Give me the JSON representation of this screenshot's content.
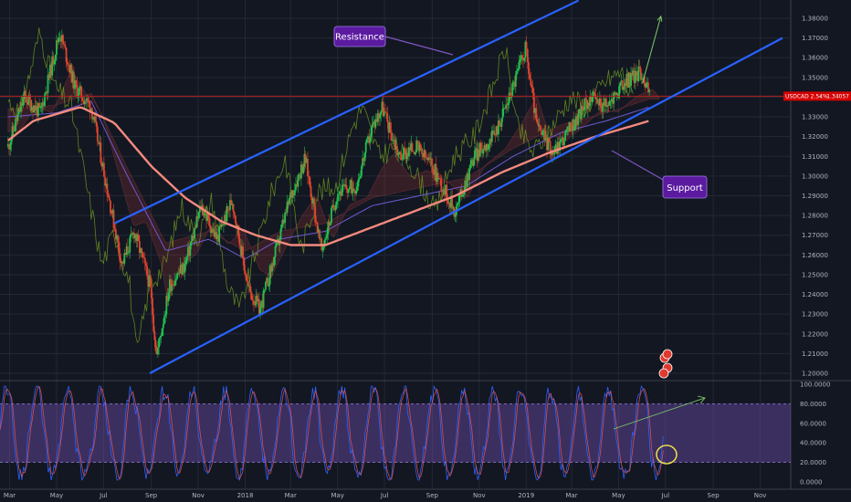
{
  "chart_data": [
    {
      "type": "line",
      "symbol_label": "USDCAD 2.54%",
      "last_price": "1.34057",
      "title": "",
      "xlabel": "",
      "ylabel": "",
      "ylim": [
        1.195,
        1.385
      ],
      "x_ticks": [
        "Mar",
        "May",
        "Jul",
        "Sep",
        "Nov",
        "2018",
        "Mar",
        "May",
        "Jul",
        "Sep",
        "Nov",
        "2019",
        "Mar",
        "May",
        "Jul",
        "Sep",
        "Nov"
      ],
      "y_ticks": [
        "1.38000",
        "1.37000",
        "1.36000",
        "1.35000",
        "1.34000",
        "1.33000",
        "1.32000",
        "1.31000",
        "1.30000",
        "1.29000",
        "1.28000",
        "1.27000",
        "1.26000",
        "1.25000",
        "1.24000",
        "1.23000",
        "1.22000",
        "1.21000",
        "1.20000"
      ],
      "price_path": [
        {
          "x": "2017-02-27",
          "y": 1.315
        },
        {
          "x": "2017-03-20",
          "y": 1.34
        },
        {
          "x": "2017-04-10",
          "y": 1.332
        },
        {
          "x": "2017-05-05",
          "y": 1.373
        },
        {
          "x": "2017-05-25",
          "y": 1.345
        },
        {
          "x": "2017-06-15",
          "y": 1.335
        },
        {
          "x": "2017-07-05",
          "y": 1.295
        },
        {
          "x": "2017-07-25",
          "y": 1.255
        },
        {
          "x": "2017-08-10",
          "y": 1.272
        },
        {
          "x": "2017-08-30",
          "y": 1.245
        },
        {
          "x": "2017-09-08",
          "y": 1.209
        },
        {
          "x": "2017-09-25",
          "y": 1.245
        },
        {
          "x": "2017-10-15",
          "y": 1.255
        },
        {
          "x": "2017-11-05",
          "y": 1.285
        },
        {
          "x": "2017-11-25",
          "y": 1.268
        },
        {
          "x": "2017-12-15",
          "y": 1.288
        },
        {
          "x": "2018-01-05",
          "y": 1.243
        },
        {
          "x": "2018-01-20",
          "y": 1.232
        },
        {
          "x": "2018-02-10",
          "y": 1.262
        },
        {
          "x": "2018-03-01",
          "y": 1.29
        },
        {
          "x": "2018-03-20",
          "y": 1.309
        },
        {
          "x": "2018-04-10",
          "y": 1.262
        },
        {
          "x": "2018-05-01",
          "y": 1.292
        },
        {
          "x": "2018-05-25",
          "y": 1.295
        },
        {
          "x": "2018-06-15",
          "y": 1.325
        },
        {
          "x": "2018-06-28",
          "y": 1.335
        },
        {
          "x": "2018-07-20",
          "y": 1.31
        },
        {
          "x": "2018-08-10",
          "y": 1.315
        },
        {
          "x": "2018-09-01",
          "y": 1.305
        },
        {
          "x": "2018-10-01",
          "y": 1.282
        },
        {
          "x": "2018-10-25",
          "y": 1.31
        },
        {
          "x": "2018-11-20",
          "y": 1.32
        },
        {
          "x": "2018-12-10",
          "y": 1.34
        },
        {
          "x": "2018-12-31",
          "y": 1.365
        },
        {
          "x": "2019-01-15",
          "y": 1.325
        },
        {
          "x": "2019-02-05",
          "y": 1.312
        },
        {
          "x": "2019-03-01",
          "y": 1.325
        },
        {
          "x": "2019-03-25",
          "y": 1.34
        },
        {
          "x": "2019-04-15",
          "y": 1.335
        },
        {
          "x": "2019-05-10",
          "y": 1.348
        },
        {
          "x": "2019-05-31",
          "y": 1.353
        },
        {
          "x": "2019-06-10",
          "y": 1.341
        }
      ],
      "ma_long": [
        {
          "x": "2017-02-27",
          "y": 1.318
        },
        {
          "x": "2017-04-01",
          "y": 1.328
        },
        {
          "x": "2017-06-01",
          "y": 1.335
        },
        {
          "x": "2017-07-15",
          "y": 1.327
        },
        {
          "x": "2017-09-01",
          "y": 1.305
        },
        {
          "x": "2017-10-15",
          "y": 1.289
        },
        {
          "x": "2017-12-01",
          "y": 1.277
        },
        {
          "x": "2018-01-15",
          "y": 1.27
        },
        {
          "x": "2018-03-01",
          "y": 1.265
        },
        {
          "x": "2018-04-15",
          "y": 1.265
        },
        {
          "x": "2018-06-01",
          "y": 1.272
        },
        {
          "x": "2018-08-01",
          "y": 1.281
        },
        {
          "x": "2018-10-01",
          "y": 1.29
        },
        {
          "x": "2018-12-01",
          "y": 1.302
        },
        {
          "x": "2019-02-01",
          "y": 1.312
        },
        {
          "x": "2019-04-01",
          "y": 1.32
        },
        {
          "x": "2019-06-10",
          "y": 1.328
        }
      ],
      "ma_short": [
        {
          "x": "2017-02-27",
          "y": 1.33
        },
        {
          "x": "2017-05-01",
          "y": 1.332
        },
        {
          "x": "2017-06-15",
          "y": 1.338
        },
        {
          "x": "2017-08-01",
          "y": 1.3
        },
        {
          "x": "2017-09-20",
          "y": 1.262
        },
        {
          "x": "2017-11-15",
          "y": 1.268
        },
        {
          "x": "2018-01-01",
          "y": 1.258
        },
        {
          "x": "2018-02-15",
          "y": 1.268
        },
        {
          "x": "2018-04-15",
          "y": 1.272
        },
        {
          "x": "2018-06-15",
          "y": 1.285
        },
        {
          "x": "2018-08-15",
          "y": 1.29
        },
        {
          "x": "2018-10-15",
          "y": 1.295
        },
        {
          "x": "2018-12-15",
          "y": 1.31
        },
        {
          "x": "2019-02-15",
          "y": 1.322
        },
        {
          "x": "2019-04-15",
          "y": 1.328
        },
        {
          "x": "2019-06-10",
          "y": 1.335
        }
      ],
      "channel_upper": [
        {
          "x": "2017-07-15",
          "y": 1.276
        },
        {
          "x": "2019-03-10",
          "y": 1.389
        }
      ],
      "channel_lower": [
        {
          "x": "2017-08-30",
          "y": 1.2
        },
        {
          "x": "2019-11-30",
          "y": 1.37
        }
      ],
      "horizontal_line": 1.3405,
      "forecast_arrow": [
        {
          "x": "2019-06-01",
          "y": 1.347
        },
        {
          "x": "2019-06-25",
          "y": 1.381
        }
      ],
      "annotations": [
        "Resistance",
        "Support"
      ],
      "colors": {
        "bull": "#26a69a",
        "bear": "#ef5350",
        "channel": "#2962ff",
        "ma_long": "#f48a7e",
        "ma_short": "#6f5ad1",
        "hline": "#b71c1c",
        "callout": "#5b1aa0",
        "ichimoku_lagging": "#7aa61f"
      }
    },
    {
      "type": "line",
      "title": "",
      "xlabel": "",
      "ylabel": "",
      "ylim": [
        0,
        100
      ],
      "y_ticks": [
        "100.0000",
        "80.0000",
        "60.0000",
        "40.0000",
        "20.0000",
        "0.0000"
      ],
      "upper_band": 80,
      "lower_band": 20,
      "colors": {
        "k": "#2962ff",
        "d": "#ef5350",
        "band": "#7e57c2"
      }
    }
  ]
}
